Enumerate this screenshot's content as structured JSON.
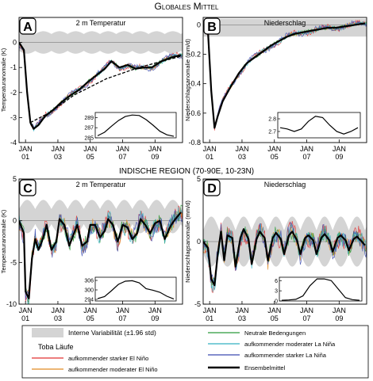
{
  "header": {
    "title": "Globales Mittel"
  },
  "section2": {
    "title": "INDISCHE REGION (70-90E, 10-23N)"
  },
  "xticks": [
    "JAN\n01",
    "JAN\n03",
    "JAN\n05",
    "JAN\n07",
    "JAN\n09"
  ],
  "chart_data": [
    {
      "panel": "A",
      "type": "line",
      "title": "2 m Temperatur",
      "ylabel": "Temperaturanomalie (K)",
      "ylim": [
        -4,
        1
      ],
      "yticks": [
        -4,
        -3,
        -2,
        -1,
        0
      ],
      "xlim": [
        2000.6,
        2010.7
      ],
      "band": {
        "lo": -0.45,
        "hi": 0.45
      },
      "ensemble": [
        [
          2000.6,
          0
        ],
        [
          2000.9,
          -0.3
        ],
        [
          2001.1,
          -2.0
        ],
        [
          2001.3,
          -3.2
        ],
        [
          2001.5,
          -3.45
        ],
        [
          2001.8,
          -3.3
        ],
        [
          2002.2,
          -2.95
        ],
        [
          2002.7,
          -2.7
        ],
        [
          2003.2,
          -2.4
        ],
        [
          2003.8,
          -2.1
        ],
        [
          2004.3,
          -1.9
        ],
        [
          2004.9,
          -1.55
        ],
        [
          2005.4,
          -1.3
        ],
        [
          2005.9,
          -1.05
        ],
        [
          2006.3,
          -0.75
        ],
        [
          2006.8,
          -1.0
        ],
        [
          2007.3,
          -0.9
        ],
        [
          2007.8,
          -1.05
        ],
        [
          2008.3,
          -1.0
        ],
        [
          2008.8,
          -1.0
        ],
        [
          2009.4,
          -0.75
        ],
        [
          2010,
          -0.6
        ],
        [
          2010.6,
          -0.5
        ]
      ],
      "dashed": [
        [
          2001.3,
          -3.2
        ],
        [
          2002.5,
          -2.8
        ],
        [
          2004,
          -2.1
        ],
        [
          2006,
          -1.45
        ],
        [
          2008,
          -1.0
        ],
        [
          2010.6,
          -0.55
        ]
      ],
      "inset": {
        "ylim": [
          285,
          290
        ],
        "yticks": [
          285,
          287,
          289
        ],
        "values": [
          285.4,
          286.1,
          287.3,
          288.4,
          289.2,
          289.5,
          289.4,
          288.6,
          287.5,
          286.3,
          285.6,
          285.3
        ]
      }
    },
    {
      "panel": "B",
      "type": "line",
      "title": "Niederschlag",
      "ylabel": "Niederschlagsanomalie (mm/d)",
      "ylim": [
        -0.8,
        0.05
      ],
      "yticks": [
        -0.8,
        -0.6,
        -0.4,
        -0.2,
        0
      ],
      "xlim": [
        2000.6,
        2010.7
      ],
      "band": {
        "lo": -0.08,
        "hi": 0.04
      },
      "ensemble": [
        [
          2000.6,
          0
        ],
        [
          2000.9,
          -0.05
        ],
        [
          2001.1,
          -0.45
        ],
        [
          2001.3,
          -0.7
        ],
        [
          2001.5,
          -0.62
        ],
        [
          2001.8,
          -0.52
        ],
        [
          2002.3,
          -0.42
        ],
        [
          2002.8,
          -0.33
        ],
        [
          2003.3,
          -0.26
        ],
        [
          2003.8,
          -0.22
        ],
        [
          2004.3,
          -0.18
        ],
        [
          2004.8,
          -0.14
        ],
        [
          2005.3,
          -0.11
        ],
        [
          2005.8,
          -0.08
        ],
        [
          2006.3,
          -0.06
        ],
        [
          2006.8,
          -0.05
        ],
        [
          2007.3,
          -0.04
        ],
        [
          2007.8,
          -0.03
        ],
        [
          2008.3,
          -0.02
        ],
        [
          2008.8,
          -0.02
        ],
        [
          2009.4,
          -0.01
        ],
        [
          2010,
          0
        ],
        [
          2010.6,
          0.01
        ]
      ],
      "inset": {
        "ylim": [
          2.65,
          2.85
        ],
        "yticks": [
          2.7,
          2.8
        ],
        "values": [
          2.73,
          2.72,
          2.7,
          2.72,
          2.78,
          2.82,
          2.81,
          2.75,
          2.7,
          2.68,
          2.7,
          2.73
        ]
      }
    },
    {
      "panel": "C",
      "type": "line",
      "title": "2 m Temperatur",
      "ylabel": "Temperaturanomalie (K)",
      "ylim": [
        -10,
        5
      ],
      "yticks": [
        -10,
        -5,
        0,
        5
      ],
      "xlim": [
        2000.6,
        2010.7
      ],
      "band": {
        "lo": -1.5,
        "hi": 2.5
      },
      "ensemble": [
        [
          2000.6,
          0
        ],
        [
          2000.9,
          -1.5
        ],
        [
          2001.0,
          -8.5
        ],
        [
          2001.2,
          -9.3
        ],
        [
          2001.4,
          -4.5
        ],
        [
          2001.6,
          -2.2
        ],
        [
          2001.8,
          -3.5
        ],
        [
          2002.1,
          -2.0
        ],
        [
          2002.3,
          -0.5
        ],
        [
          2002.6,
          -3.5
        ],
        [
          2002.9,
          -2.5
        ],
        [
          2003.1,
          0.2
        ],
        [
          2003.4,
          -0.5
        ],
        [
          2003.7,
          -3.0
        ],
        [
          2004.0,
          -1.5
        ],
        [
          2004.2,
          -0.5
        ],
        [
          2004.5,
          -3.0
        ],
        [
          2004.8,
          -2.5
        ],
        [
          2005.0,
          -0.5
        ],
        [
          2005.3,
          -0.5
        ],
        [
          2005.6,
          -2.0
        ],
        [
          2005.9,
          -1.2
        ],
        [
          2006.1,
          0.2
        ],
        [
          2006.4,
          -0.5
        ],
        [
          2006.7,
          -2.5
        ],
        [
          2007.0,
          -0.5
        ],
        [
          2007.3,
          -0.8
        ],
        [
          2007.6,
          -2.2
        ],
        [
          2007.9,
          -1.5
        ],
        [
          2008.1,
          0.2
        ],
        [
          2008.4,
          -0.5
        ],
        [
          2008.7,
          -1.5
        ],
        [
          2009.0,
          -0.3
        ],
        [
          2009.3,
          0
        ],
        [
          2009.6,
          -2.2
        ],
        [
          2010.0,
          -0.5
        ],
        [
          2010.3,
          0.3
        ],
        [
          2010.6,
          1.0
        ]
      ],
      "inset": {
        "ylim": [
          293,
          308
        ],
        "yticks": [
          294,
          300,
          306
        ],
        "values": [
          294.5,
          295.8,
          299.5,
          303.5,
          305.5,
          305.8,
          304.5,
          300.8,
          299.8,
          298.5,
          296.0,
          294.3
        ]
      }
    },
    {
      "panel": "D",
      "type": "line",
      "title": "Niederschlag",
      "ylabel": "Niederschlagsanomalie (mm/d)",
      "ylim": [
        -5,
        5
      ],
      "yticks": [
        -5,
        0,
        5
      ],
      "xlim": [
        2000.6,
        2010.7
      ],
      "band": {
        "lo": -2.0,
        "hi": 2.0
      },
      "ensemble": [
        [
          2000.6,
          0
        ],
        [
          2000.9,
          -0.5
        ],
        [
          2001.1,
          -3.0
        ],
        [
          2001.3,
          -3.5
        ],
        [
          2001.5,
          -1.0
        ],
        [
          2001.7,
          0.8
        ],
        [
          2001.9,
          -1.5
        ],
        [
          2002.1,
          0.5
        ],
        [
          2002.4,
          0.3
        ],
        [
          2002.6,
          -2.0
        ],
        [
          2002.9,
          0.3
        ],
        [
          2003.1,
          1.0
        ],
        [
          2003.4,
          0.2
        ],
        [
          2003.6,
          -1.8
        ],
        [
          2003.9,
          0.2
        ],
        [
          2004.1,
          0.8
        ],
        [
          2004.4,
          0.3
        ],
        [
          2004.6,
          -1.5
        ],
        [
          2004.9,
          0.3
        ],
        [
          2005.1,
          0.7
        ],
        [
          2005.4,
          0.2
        ],
        [
          2005.6,
          -1.0
        ],
        [
          2005.9,
          0.5
        ],
        [
          2006.1,
          0.8
        ],
        [
          2006.4,
          0.1
        ],
        [
          2006.6,
          -1.0
        ],
        [
          2006.9,
          0.3
        ],
        [
          2007.1,
          0.5
        ],
        [
          2007.4,
          0.1
        ],
        [
          2007.6,
          -1.0
        ],
        [
          2007.9,
          0.3
        ],
        [
          2008.1,
          0.6
        ],
        [
          2008.4,
          0.1
        ],
        [
          2008.6,
          -0.8
        ],
        [
          2008.9,
          0.3
        ],
        [
          2009.1,
          0.5
        ],
        [
          2009.4,
          0.1
        ],
        [
          2009.6,
          -0.7
        ],
        [
          2009.9,
          0.2
        ],
        [
          2010.1,
          0.4
        ],
        [
          2010.4,
          0
        ],
        [
          2010.6,
          -0.3
        ]
      ],
      "inset": {
        "ylim": [
          0,
          7
        ],
        "yticks": [
          0,
          3,
          6
        ],
        "values": [
          0.2,
          0.3,
          0.5,
          1.5,
          4.5,
          6.5,
          6.5,
          6.0,
          3.5,
          1.0,
          0.4,
          0.2
        ]
      }
    }
  ],
  "series_colors": [
    "#e03030",
    "#e08a20",
    "#2a9a3a",
    "#30b0c0",
    "#3a4ab0"
  ],
  "legend": {
    "items": [
      {
        "label": "Interne Variabilität (±1.96 std)",
        "color": "#d4d4d4",
        "kind": "band"
      },
      {
        "label": "Toba Läufe",
        "color": "",
        "kind": "none"
      },
      {
        "label": "aufkommender starker El Niño",
        "color": "#e03030",
        "kind": "line"
      },
      {
        "label": "aufkommender moderater El Niño",
        "color": "#e08a20",
        "kind": "line"
      },
      {
        "label": "Neutrale Bedengungen",
        "color": "#2a9a3a",
        "kind": "line"
      },
      {
        "label": "aufkommender moderater La Niña",
        "color": "#30b0c0",
        "kind": "line"
      },
      {
        "label": "aufkommender starker La Niña",
        "color": "#3a4ab0",
        "kind": "line"
      },
      {
        "label": "Ensembelmittel",
        "color": "#000000",
        "kind": "thick"
      }
    ]
  }
}
